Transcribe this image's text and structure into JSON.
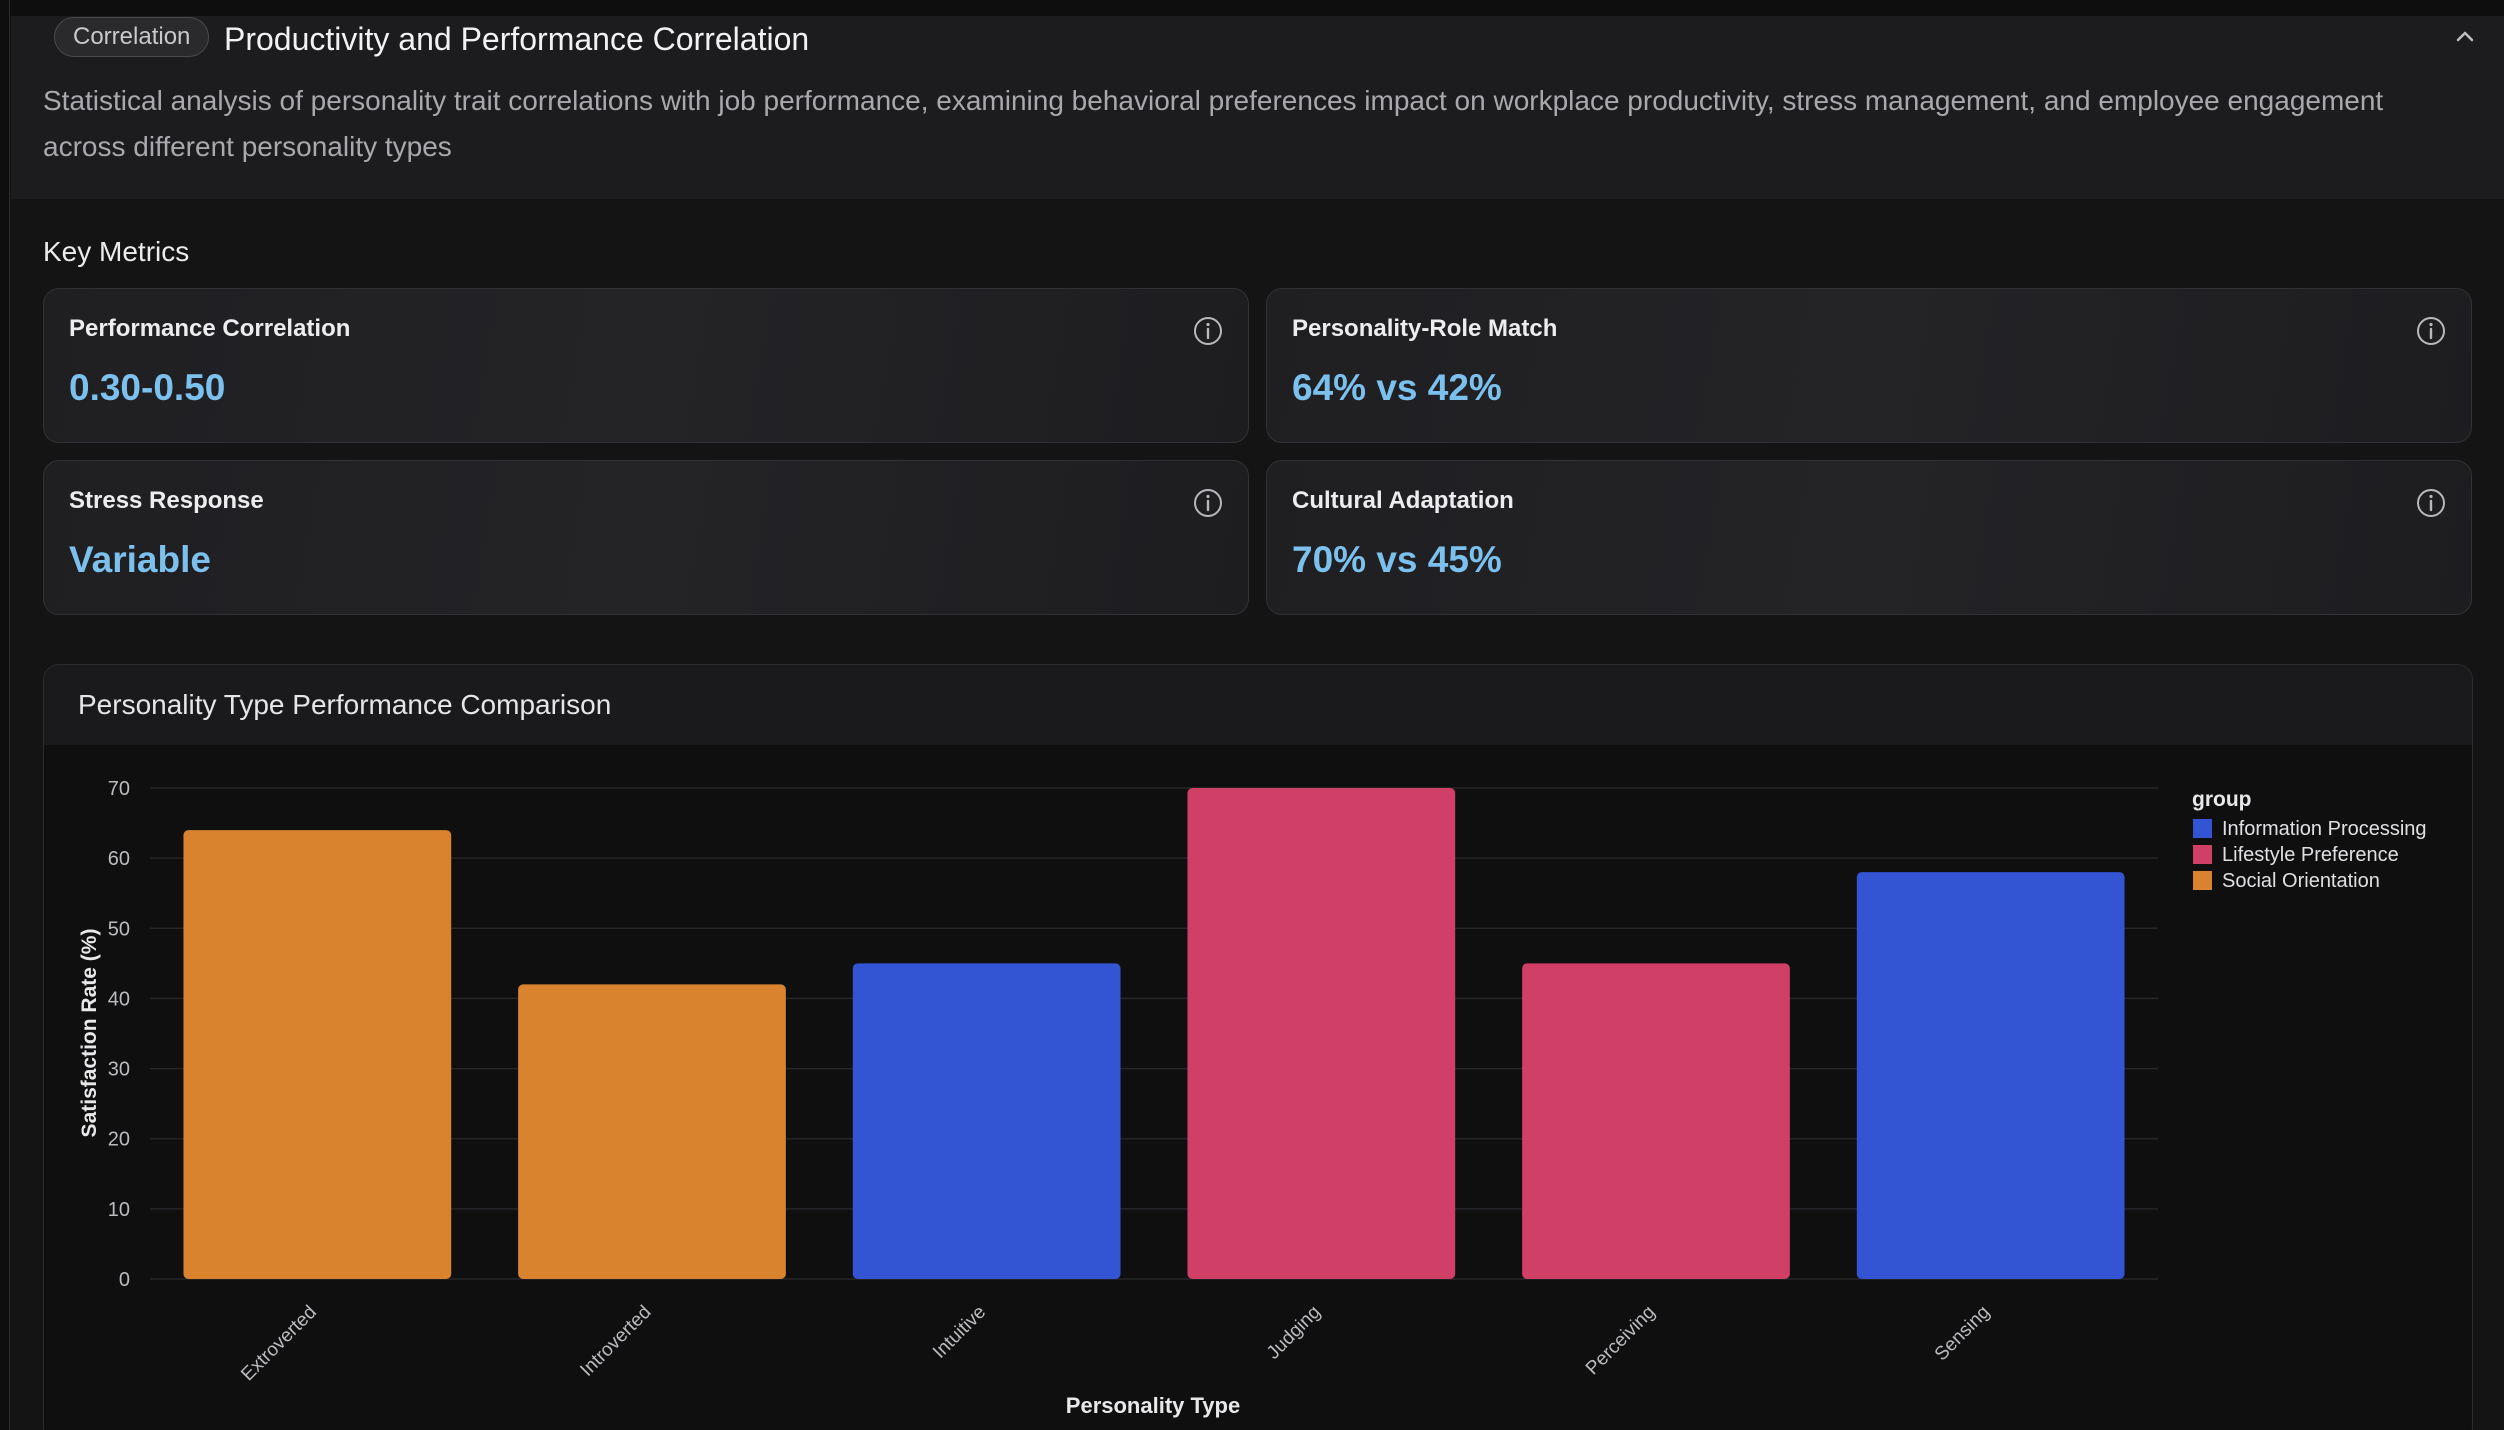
{
  "header": {
    "tag": "Correlation",
    "title": "Productivity and Performance Correlation",
    "description": "Statistical analysis of personality trait correlations with job performance, examining behavioral preferences impact on workplace productivity, stress management, and employee engagement across different personality types",
    "collapse_icon": "chevron-up-icon"
  },
  "metrics": {
    "section_label": "Key Metrics",
    "info_icon": "info-icon",
    "items": [
      {
        "label": "Performance Correlation",
        "value": "0.30-0.50"
      },
      {
        "label": "Personality-Role Match",
        "value": "64% vs 42%"
      },
      {
        "label": "Stress Response",
        "value": "Variable"
      },
      {
        "label": "Cultural Adaptation",
        "value": "70% vs 45%"
      }
    ]
  },
  "chart": {
    "title": "Personality Type Performance Comparison"
  },
  "colors": {
    "accent_value": "#7cc0ee",
    "Information Processing": "#3355d4",
    "Lifestyle Preference": "#cf3f66",
    "Social Orientation": "#d9832f"
  },
  "chart_data": {
    "type": "bar",
    "title": "Personality Type Performance Comparison",
    "xlabel": "Personality Type",
    "ylabel": "Satisfaction Rate (%)",
    "ylim": [
      0,
      70
    ],
    "yticks": [
      0,
      10,
      20,
      30,
      40,
      50,
      60,
      70
    ],
    "grid": true,
    "legend_title": "group",
    "legend_placement": "top-right",
    "legend": [
      "Information Processing",
      "Lifestyle Preference",
      "Social Orientation"
    ],
    "categories": [
      "Extroverted",
      "Introverted",
      "Intuitive",
      "Judging",
      "Perceiving",
      "Sensing"
    ],
    "values": [
      64,
      42,
      45,
      70,
      45,
      58
    ],
    "groups": [
      "Social Orientation",
      "Social Orientation",
      "Information Processing",
      "Lifestyle Preference",
      "Lifestyle Preference",
      "Information Processing"
    ]
  }
}
